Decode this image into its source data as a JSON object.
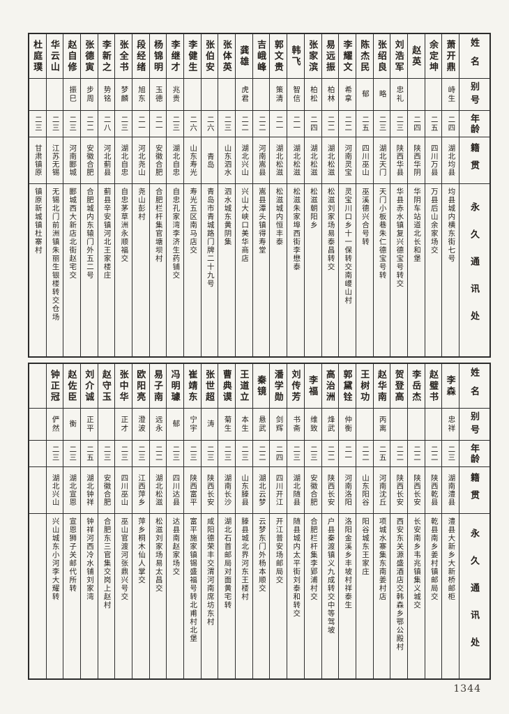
{
  "page": {
    "number": "1344"
  },
  "header_labels": {
    "name": "姓名",
    "alias": "别号",
    "age": "年龄",
    "native": "籍贯",
    "address": "永久通讯处"
  },
  "tables": [
    {
      "position": "top",
      "empty_trailing_columns": 0,
      "people": [
        {
          "name": "萧开鼎",
          "alias": "峙生",
          "age": "二四",
          "native": "湖北均县",
          "address": "均县城内横东街七号"
        },
        {
          "name": "余定坤",
          "alias": "",
          "age": "二五",
          "native": "四川万县",
          "address": "万县后山余家场交"
        },
        {
          "name": "赵英",
          "alias": "",
          "age": "二四",
          "native": "陕西华阴",
          "address": "华阴车站道北长和堡"
        },
        {
          "name": "刘浩军",
          "alias": "忠礼",
          "age": "二三",
          "native": "陕西华县",
          "address": "华县赤水镇复兴德宝号转交"
        },
        {
          "name": "张绍良",
          "alias": "略",
          "age": "二三",
          "native": "湖北天门",
          "address": "天门小板巷朱仁德宝号转"
        },
        {
          "name": "陈杰民",
          "alias": "郁",
          "age": "二五",
          "native": "四川巫山",
          "address": "巫溪德兴合号转"
        },
        {
          "name": "李耀文",
          "alias": "希拿",
          "age": "二二",
          "native": "河南灵宝",
          "address": "灵宝川口乡十一保转交南崾山村"
        },
        {
          "name": "易远振",
          "alias": "柏林",
          "age": "二二",
          "native": "湖北松滋",
          "address": "松滋刘家场易泰昌转交"
        },
        {
          "name": "张家滨",
          "alias": "柏松",
          "age": "二四",
          "native": "湖北松滋",
          "address": "松滋朝阳乡"
        },
        {
          "name": "韩飞",
          "alias": "智信",
          "age": "二一",
          "native": "湖北松滋",
          "address": "松滋朱家埠西街李懋泰"
        },
        {
          "name": "郭文贵",
          "alias": "策清",
          "age": "二一",
          "native": "湖北松滋",
          "address": "松滋城内恒丰泰"
        },
        {
          "name": "吉峨峰",
          "alias": "",
          "age": "二二",
          "native": "河南嵩县",
          "address": "嵩县潭头镇得寿堂"
        },
        {
          "name": "龚雄",
          "alias": "虎君",
          "age": "二二",
          "native": "湖北兴山",
          "address": "兴山大峡口美华商店"
        },
        {
          "name": "张体英",
          "alias": "",
          "age": "二三",
          "native": "山东泗水",
          "address": "泗水城东黄阴集"
        },
        {
          "name": "张伯安",
          "alias": "",
          "age": "二六",
          "native": "青岛",
          "address": "青岛市青城路门牌二十九号"
        },
        {
          "name": "李健生",
          "alias": "",
          "age": "二六",
          "native": "山东寿光",
          "address": "寿光五区南马店交"
        },
        {
          "name": "李继才",
          "alias": "兆贵",
          "age": "二三",
          "native": "湖北自忠",
          "address": "自忠孔家湾李济生药铺交"
        },
        {
          "name": "杨锦明",
          "alias": "玉德",
          "age": "二一",
          "native": "安徽合肥",
          "address": "合肥栏杆集官塘坝村"
        },
        {
          "name": "段经绪",
          "alias": "旭东",
          "age": "二一",
          "native": "河北尧山",
          "address": "尧山彭村"
        },
        {
          "name": "张全书",
          "alias": "梦麟",
          "age": "二三",
          "native": "湖北自忠",
          "address": "自忠茅草洲永顺福交"
        },
        {
          "name": "李新之",
          "alias": "势铭",
          "age": "二八",
          "native": "河北蓟县",
          "address": "蓟县辛安镇河北王家楼庄"
        },
        {
          "name": "张德寅",
          "alias": "步周",
          "age": "二二",
          "native": "安徽合肥",
          "address": "合肥城内东辕门外五二号"
        },
        {
          "name": "赵自修",
          "alias": "振巳",
          "age": "二三",
          "native": "河南郾城",
          "address": "郾城西大新店北街赵宅交"
        },
        {
          "name": "华云山",
          "alias": "",
          "age": "二三",
          "native": "江苏无锡",
          "address": "无锡北门前洲镇朱丽生银楼转交仓场"
        },
        {
          "name": "杜庭璞",
          "alias": "",
          "age": "二三",
          "native": "甘肃镇原",
          "address": "镇原新城镇杜寨村"
        }
      ]
    },
    {
      "position": "bottom",
      "empty_trailing_columns": 1,
      "people": [
        {
          "name": "李森",
          "alias": "忠祥",
          "age": "二三",
          "native": "湖南澧县",
          "address": "澧县大新乡大新桥邮柜"
        },
        {
          "name": "赵璧书",
          "alias": "",
          "age": "二二",
          "native": "陕西乾县",
          "address": "乾县南乡姜村镇邮局交"
        },
        {
          "name": "李岳杰",
          "alias": "",
          "age": "二二",
          "native": "陕西长安",
          "address": "长安南乡韦兆镇集义城交"
        },
        {
          "name": "贺登高",
          "alias": "",
          "age": "二二",
          "native": "陕西长安",
          "address": "西安东关源盛酒店交韩森乡鄂公殿村"
        },
        {
          "name": "赵华南",
          "alias": "丙离",
          "age": "二五",
          "native": "河南沈丘",
          "address": "项城水寨集东南姜村店"
        },
        {
          "name": "王树功",
          "alias": "",
          "age": "二二",
          "native": "山东阳谷",
          "address": "阳谷城东王家庄"
        },
        {
          "name": "郭黛铨",
          "alias": "仲衡",
          "age": "二一",
          "native": "河南洛阳",
          "address": "洛阳金溪乡丰坡村祥泰生"
        },
        {
          "name": "高治洲",
          "alias": "烽武",
          "age": "二二",
          "native": "陕西长安",
          "address": "户县秦渡镇义九成转交中等驾坡"
        },
        {
          "name": "李福",
          "alias": "维致",
          "age": "二三",
          "native": "安徽合肥",
          "address": "合肥栏杆集李郢浦村交"
        },
        {
          "name": "刘传芳",
          "alias": "书斋",
          "age": "二三",
          "native": "湖北随县",
          "address": "随县城内太平街刘泰和转交"
        },
        {
          "name": "潘学勋",
          "alias": "剑辉",
          "age": "二四",
          "native": "四川开江",
          "address": "开江普安场邮局交"
        },
        {
          "name": "秦镜",
          "alias": "悬武",
          "age": "二二",
          "native": "湖北云梦",
          "address": "云梦东门外杨本顺交"
        },
        {
          "name": "王道立",
          "alias": "本生",
          "age": "二三",
          "native": "山东滕县",
          "address": "滕县城北界河东王楼村"
        },
        {
          "name": "曹典谟",
          "alias": "菊生",
          "age": "二三",
          "native": "湖南长沙",
          "address": "湖北石首邮局对面黄宅转"
        },
        {
          "name": "张世超",
          "alias": "涛",
          "age": "二三",
          "native": "陕西长安",
          "address": "咸阳德荣丰交渭河南席坊东村"
        },
        {
          "name": "崔靖东",
          "alias": "宁宇",
          "age": "二三",
          "native": "陕西富平",
          "address": "富平施家镇锡盛福号转北甫村北堡"
        },
        {
          "name": "冯明璩",
          "alias": "郁",
          "age": "二三",
          "native": "四川达县",
          "address": "达县南赵家场交"
        },
        {
          "name": "易子南",
          "alias": "远永",
          "age": "二二",
          "native": "湖北松滋",
          "address": "松滋刘家场易太昌交"
        },
        {
          "name": "欧阳亮",
          "alias": "澄波",
          "age": "二三",
          "native": "江西萍乡",
          "address": "萍乡桐木仙人掌交"
        },
        {
          "name": "张中华",
          "alias": "正才",
          "age": "二三",
          "native": "四川巫山",
          "address": "巫山官渡河张鼎兴号交"
        },
        {
          "name": "赵守玉",
          "alias": "",
          "age": "二三",
          "native": "安徽合肥",
          "address": "合肥东三官集交岗上赵村"
        },
        {
          "name": "刘介诚",
          "alias": "正平",
          "age": "二五",
          "native": "湖北钟祥",
          "address": "钟祥河西冷水铺刘家湾"
        },
        {
          "name": "赵佐臣",
          "alias": "衡",
          "age": "二三",
          "native": "湖北宣恩",
          "address": "宣恩狮子关邮代所转"
        },
        {
          "name": "钟正冠",
          "alias": "俨然",
          "age": "二三",
          "native": "湖北兴山",
          "address": "兴山城东小河李大耀转"
        }
      ]
    }
  ]
}
